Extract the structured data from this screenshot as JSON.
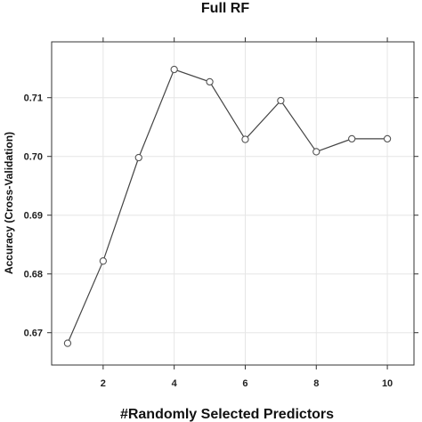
{
  "chart_data": {
    "type": "line",
    "title": "Full RF",
    "xlabel": "#Randomly Selected Predictors",
    "ylabel": "Accuracy (Cross-Validation)",
    "x": [
      1,
      2,
      3,
      4,
      5,
      6,
      7,
      8,
      9,
      10
    ],
    "series": [
      {
        "values": [
          0.6682,
          0.6822,
          0.6998,
          0.7148,
          0.7127,
          0.7029,
          0.7095,
          0.7008,
          0.703,
          0.703
        ]
      }
    ],
    "xlim": [
      0.55,
      10.75
    ],
    "ylim": [
      0.6645,
      0.7195
    ],
    "xticks": [
      2,
      4,
      6,
      8,
      10
    ],
    "yticks": [
      0.67,
      0.68,
      0.69,
      0.7,
      0.71
    ],
    "ytick_labels": [
      "0.67",
      "0.68",
      "0.69",
      "0.70",
      "0.71"
    ],
    "grid": true,
    "colors": {
      "line": "#444444",
      "marker": "#555555",
      "grid": "#e6e6e6",
      "frame": "#333333"
    }
  }
}
